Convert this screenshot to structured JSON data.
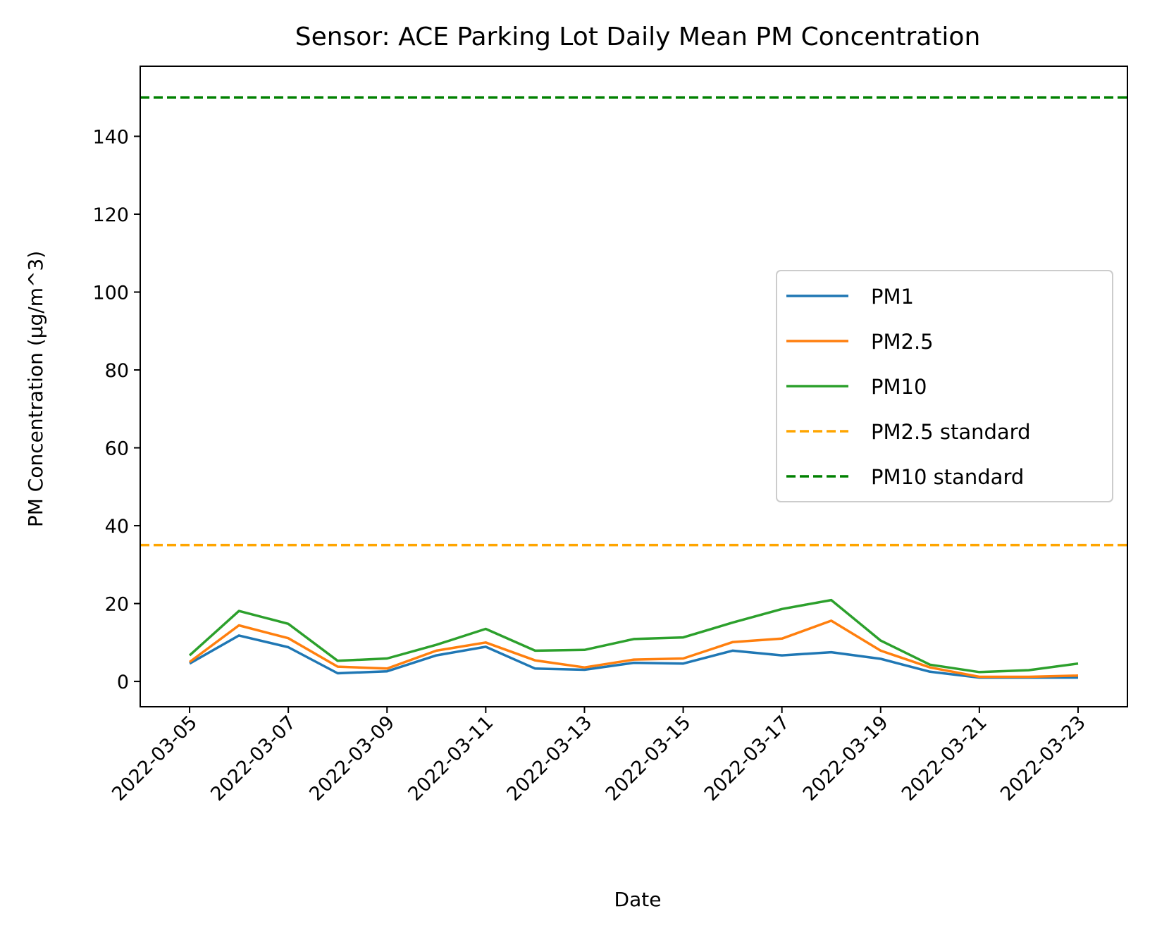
{
  "chart_data": {
    "type": "line",
    "title": "Sensor: ACE Parking Lot Daily Mean PM Concentration",
    "xlabel": "Date",
    "ylabel": "PM Concentration (µg/m^3)",
    "x": [
      "2022-03-05",
      "2022-03-06",
      "2022-03-07",
      "2022-03-08",
      "2022-03-09",
      "2022-03-10",
      "2022-03-11",
      "2022-03-12",
      "2022-03-13",
      "2022-03-14",
      "2022-03-15",
      "2022-03-16",
      "2022-03-17",
      "2022-03-18",
      "2022-03-19",
      "2022-03-20",
      "2022-03-21",
      "2022-03-22",
      "2022-03-23"
    ],
    "x_ticks": [
      "2022-03-05",
      "2022-03-07",
      "2022-03-09",
      "2022-03-11",
      "2022-03-13",
      "2022-03-15",
      "2022-03-17",
      "2022-03-19",
      "2022-03-21",
      "2022-03-23"
    ],
    "x_range": [
      "2022-03-04",
      "2022-03-24"
    ],
    "ylim": [
      -6.5,
      158
    ],
    "y_ticks": [
      0,
      20,
      40,
      60,
      80,
      100,
      120,
      140
    ],
    "grid": false,
    "legend_position": "center-right",
    "series": [
      {
        "name": "PM1",
        "color": "#1f77b4",
        "style": "solid",
        "values": [
          4.6,
          11.8,
          8.8,
          2.1,
          2.6,
          6.7,
          8.9,
          3.3,
          3.0,
          4.8,
          4.6,
          7.9,
          6.7,
          7.5,
          5.8,
          2.5,
          1.0,
          1.0,
          1.0
        ]
      },
      {
        "name": "PM2.5",
        "color": "#ff7f0e",
        "style": "solid",
        "values": [
          5.0,
          14.4,
          11.1,
          3.8,
          3.3,
          7.9,
          10.0,
          5.4,
          3.6,
          5.6,
          5.9,
          10.1,
          11.0,
          15.6,
          7.9,
          3.6,
          1.2,
          1.2,
          1.5
        ]
      },
      {
        "name": "PM10",
        "color": "#2ca02c",
        "style": "solid",
        "values": [
          6.7,
          18.1,
          14.8,
          5.3,
          5.9,
          9.4,
          13.5,
          7.9,
          8.1,
          10.9,
          11.3,
          15.1,
          18.6,
          20.9,
          10.5,
          4.3,
          2.4,
          2.9,
          4.6
        ]
      },
      {
        "name": "PM2.5 standard",
        "color": "#ffa500",
        "style": "dashed",
        "constant": 35
      },
      {
        "name": "PM10 standard",
        "color": "#008000",
        "style": "dashed",
        "constant": 150
      }
    ]
  }
}
